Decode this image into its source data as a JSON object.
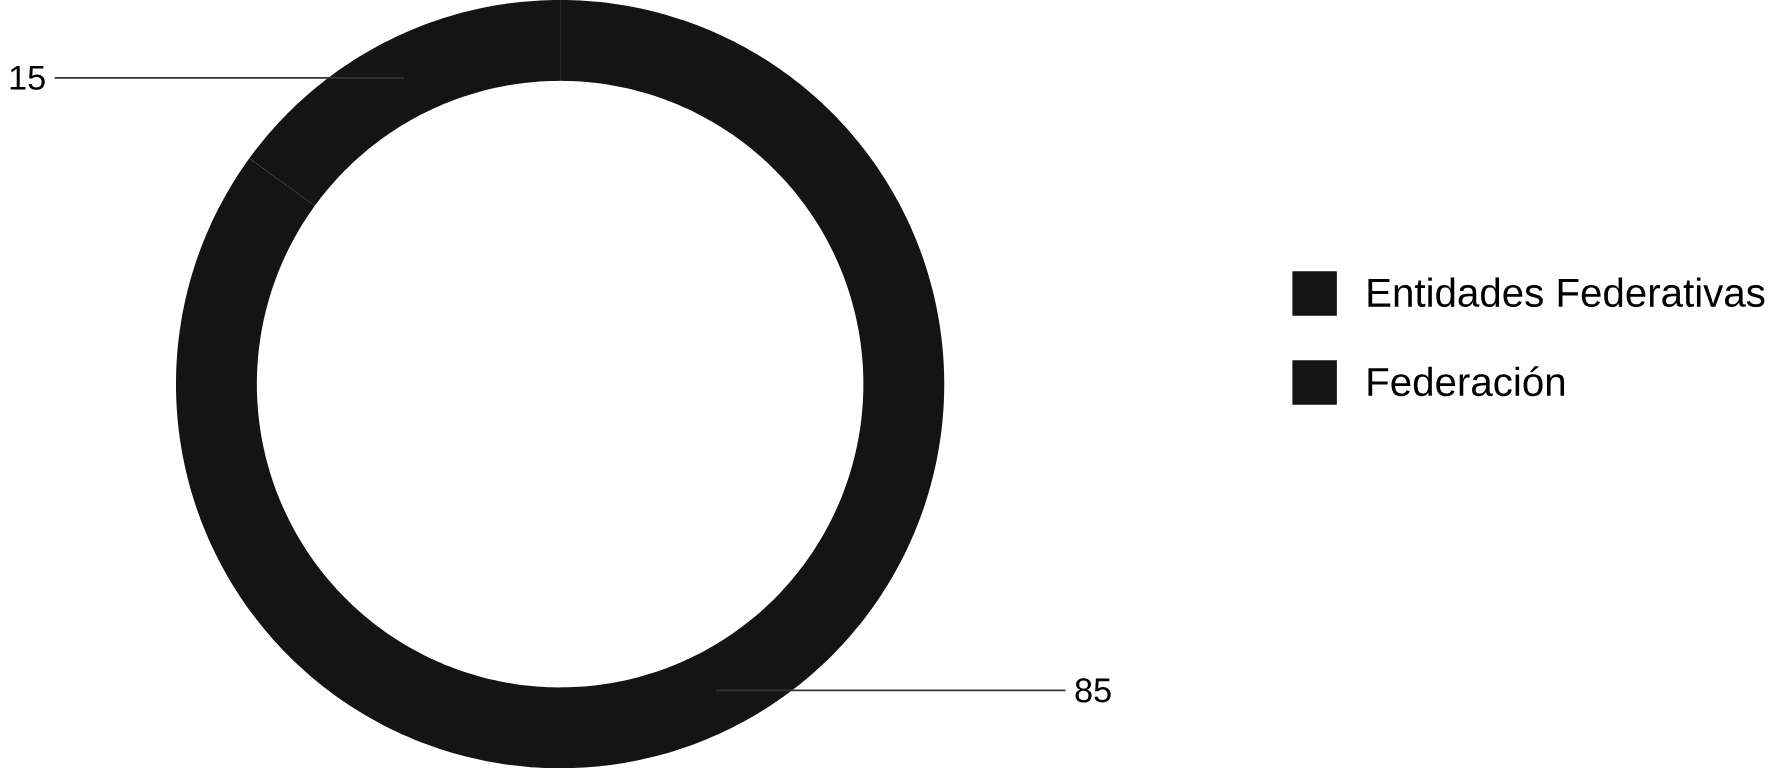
{
  "chart_data": {
    "type": "donut",
    "categories": [
      "Entidades Federativas",
      "Federación"
    ],
    "values": [
      85,
      15
    ],
    "colors": [
      "#141414",
      "#141414"
    ],
    "data_labels": true,
    "legend": "right"
  }
}
